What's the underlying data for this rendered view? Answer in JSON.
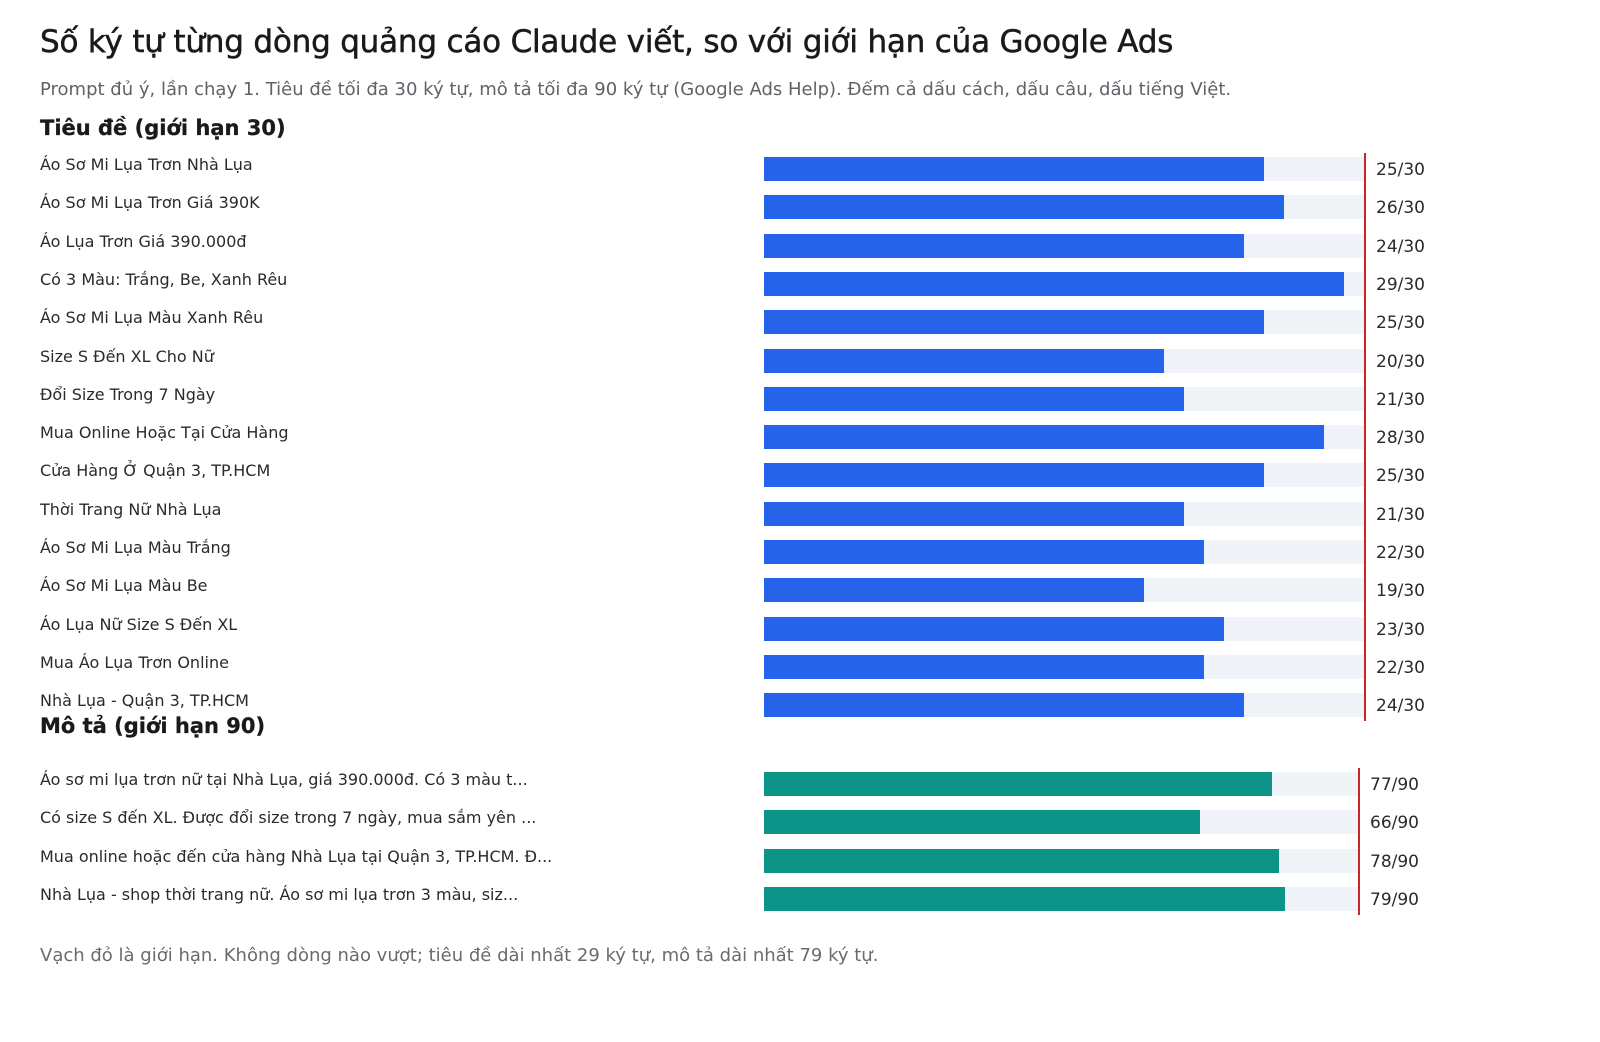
{
  "title": "Số ký tự từng dòng quảng cáo Claude viết, so với giới hạn của Google Ads",
  "subtitle": "Prompt đủ ý, lần chạy 1. Tiêu đề tối đa 30 ký tự, mô tả tối đa 90 ký tự (Google Ads Help). Đếm cả dấu cách, dấu câu, dấu tiếng Việt.",
  "footnote": "Vạch đỏ là giới hạn. Không dòng nào vượt; tiêu đề dài nhất 29 ký tự, mô tả dài nhất 79 ký tự.",
  "colors": {
    "headline_bar": "#2563eb",
    "description_bar": "#0d9488",
    "track": "#f0f3f8",
    "limit_line": "#c62828"
  },
  "chart_data": [
    {
      "type": "bar",
      "orientation": "horizontal",
      "title": "Tiêu đề (giới hạn 30)",
      "limit": 30,
      "categories": [
        "Áo Sơ Mi Lụa Trơn Nhà Lụa",
        "Áo Sơ Mi Lụa Trơn Giá 390K",
        "Áo Lụa Trơn Giá 390.000đ",
        "Có 3 Màu: Trắng, Be, Xanh Rêu",
        "Áo Sơ Mi Lụa Màu Xanh Rêu",
        "Size S Đến XL Cho Nữ",
        "Đổi Size Trong 7 Ngày",
        "Mua Online Hoặc Tại Cửa Hàng",
        "Cửa Hàng Ở Quận 3, TP.HCM",
        "Thời Trang Nữ Nhà Lụa",
        "Áo Sơ Mi Lụa Màu Trắng",
        "Áo Sơ Mi Lụa Màu Be",
        "Áo Lụa Nữ Size S Đến XL",
        "Mua Áo Lụa Trơn Online",
        "Nhà Lụa - Quận 3, TP.HCM"
      ],
      "values": [
        25,
        26,
        24,
        29,
        25,
        20,
        21,
        28,
        25,
        21,
        22,
        19,
        23,
        22,
        24
      ],
      "value_labels": [
        "25/30",
        "26/30",
        "24/30",
        "29/30",
        "25/30",
        "20/30",
        "21/30",
        "28/30",
        "25/30",
        "21/30",
        "22/30",
        "19/30",
        "23/30",
        "22/30",
        "24/30"
      ]
    },
    {
      "type": "bar",
      "orientation": "horizontal",
      "title": "Mô tả (giới hạn 90)",
      "limit": 90,
      "categories": [
        "Áo sơ mi lụa trơn nữ tại Nhà Lụa, giá 390.000đ. Có 3 màu t...",
        "Có size S đến XL. Được đổi size trong 7 ngày, mua sắm yên ...",
        "Mua online hoặc đến cửa hàng Nhà Lụa tại Quận 3, TP.HCM. Đ...",
        "Nhà Lụa - shop thời trang nữ. Áo sơ mi lụa trơn 3 màu, siz..."
      ],
      "values": [
        77,
        66,
        78,
        79
      ],
      "value_labels": [
        "77/90",
        "66/90",
        "78/90",
        "79/90"
      ]
    }
  ]
}
